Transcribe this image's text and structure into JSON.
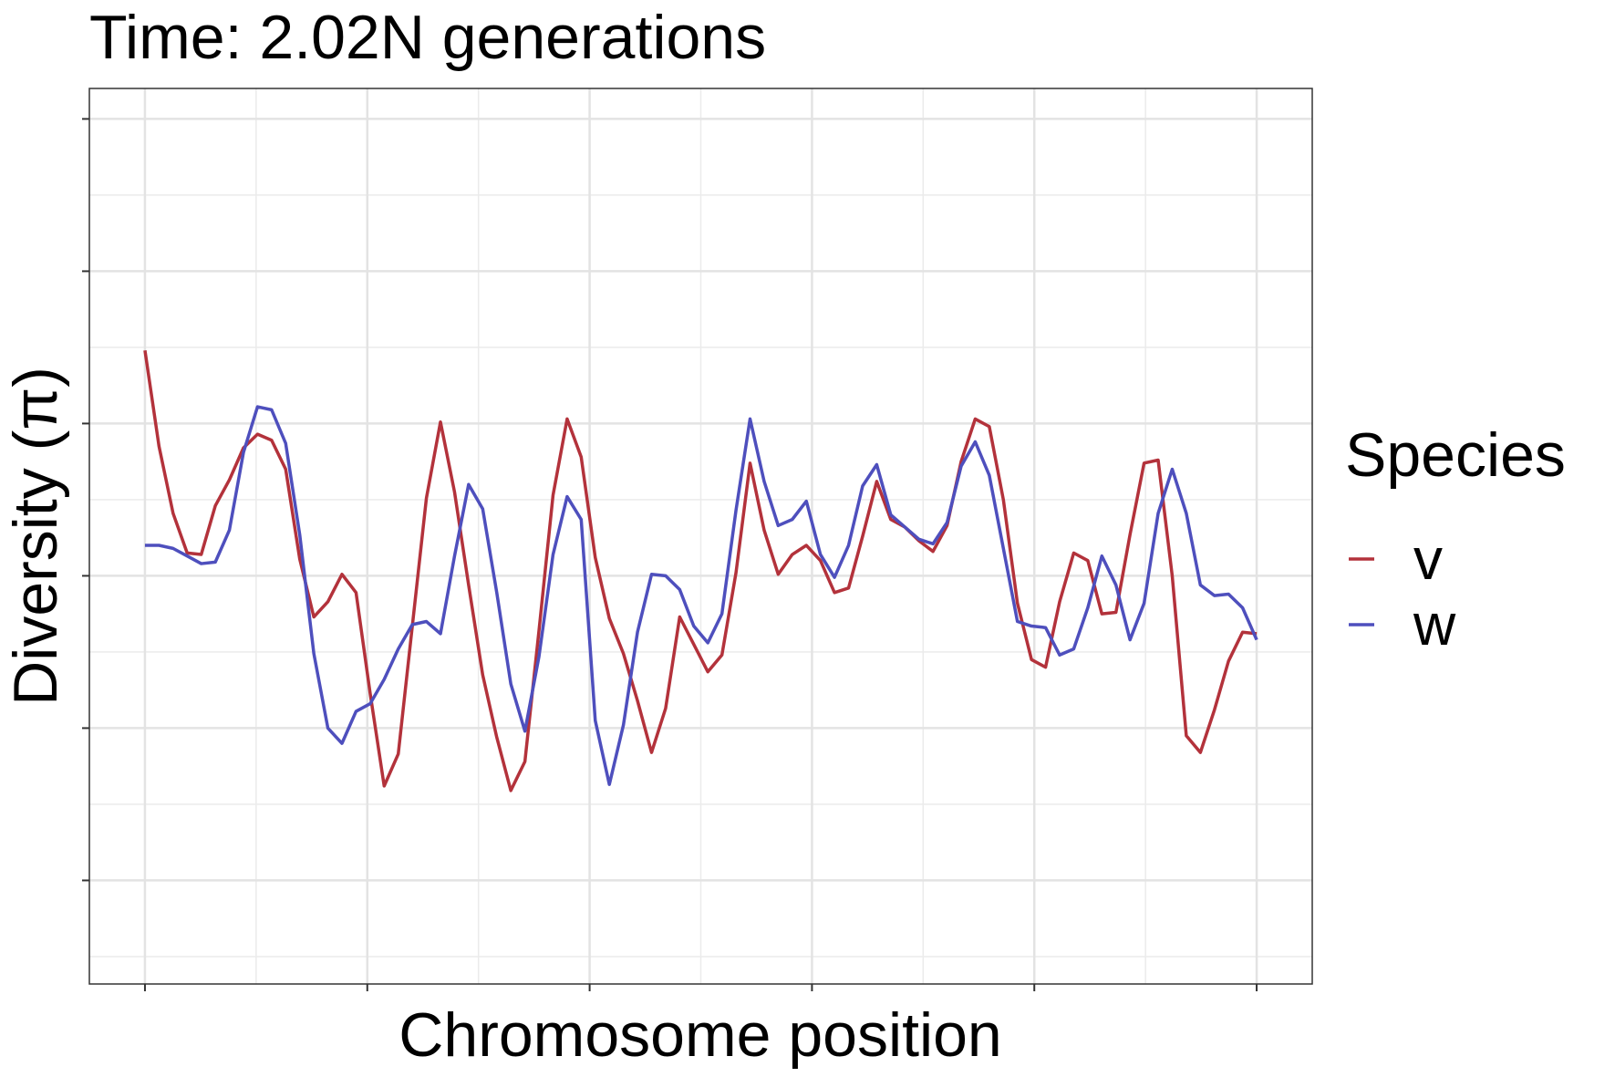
{
  "chart_data": {
    "type": "line",
    "title": "Time: 2.02N generations",
    "x_label": "Chromosome position",
    "y_label": "Diversity (π)",
    "legend_title": "Species",
    "legend_position": "right",
    "grid": true,
    "x": [
      0,
      1,
      2,
      3,
      4,
      5,
      6,
      7,
      8,
      9,
      10,
      11,
      12,
      13,
      14,
      15,
      16,
      17,
      18,
      19,
      20,
      21,
      22,
      23,
      24,
      25,
      26,
      27,
      28,
      29,
      30,
      31,
      32,
      33,
      34,
      35,
      36,
      37,
      38,
      39,
      40,
      41,
      42,
      43,
      44,
      45,
      46,
      47,
      48,
      49,
      50,
      51,
      52,
      53,
      54,
      55,
      56,
      57,
      58,
      59,
      60,
      61,
      62,
      63,
      64,
      65,
      66,
      67,
      68,
      69,
      70,
      71,
      72,
      73,
      74,
      75,
      76,
      77,
      78,
      79
    ],
    "xlim": [
      -3.95,
      82.95
    ],
    "xticks": [
      0,
      15.8,
      31.6,
      47.4,
      63.2,
      79
    ],
    "ylim": [
      -0.68,
      5.2
    ],
    "yticks": [
      0,
      1,
      2,
      3,
      4,
      5
    ],
    "series": [
      {
        "name": "v",
        "color": "#b3323b",
        "values": [
          3.48,
          2.85,
          2.41,
          2.15,
          2.14,
          2.46,
          2.63,
          2.84,
          2.93,
          2.89,
          2.7,
          2.11,
          1.73,
          1.83,
          2.01,
          1.89,
          1.23,
          0.62,
          0.83,
          1.67,
          2.51,
          3.01,
          2.55,
          1.94,
          1.35,
          0.94,
          0.59,
          0.78,
          1.64,
          2.53,
          3.03,
          2.78,
          2.12,
          1.72,
          1.49,
          1.18,
          0.84,
          1.13,
          1.73,
          1.55,
          1.37,
          1.48,
          2.02,
          2.74,
          2.3,
          2.01,
          2.14,
          2.2,
          2.1,
          1.89,
          1.92,
          2.26,
          2.62,
          2.37,
          2.32,
          2.23,
          2.16,
          2.33,
          2.75,
          3.03,
          2.98,
          2.5,
          1.82,
          1.45,
          1.4,
          1.83,
          2.15,
          2.1,
          1.75,
          1.76,
          2.27,
          2.74,
          2.76,
          2.0,
          0.95,
          0.84,
          1.12,
          1.44,
          1.63,
          1.62
        ]
      },
      {
        "name": "w",
        "color": "#4e4fbd",
        "values": [
          2.2,
          2.2,
          2.18,
          2.13,
          2.08,
          2.09,
          2.3,
          2.81,
          3.11,
          3.09,
          2.87,
          2.27,
          1.49,
          1.0,
          0.9,
          1.11,
          1.16,
          1.32,
          1.52,
          1.68,
          1.7,
          1.62,
          2.13,
          2.6,
          2.44,
          1.89,
          1.29,
          0.98,
          1.47,
          2.14,
          2.52,
          2.37,
          1.05,
          0.63,
          1.02,
          1.63,
          2.01,
          2.0,
          1.91,
          1.67,
          1.56,
          1.75,
          2.43,
          3.03,
          2.62,
          2.33,
          2.37,
          2.49,
          2.14,
          1.99,
          2.2,
          2.59,
          2.73,
          2.4,
          2.32,
          2.24,
          2.21,
          2.35,
          2.72,
          2.88,
          2.66,
          2.18,
          1.7,
          1.67,
          1.66,
          1.48,
          1.52,
          1.79,
          2.13,
          1.94,
          1.58,
          1.82,
          2.41,
          2.7,
          2.41,
          1.94,
          1.87,
          1.88,
          1.79,
          1.58
        ]
      }
    ]
  }
}
